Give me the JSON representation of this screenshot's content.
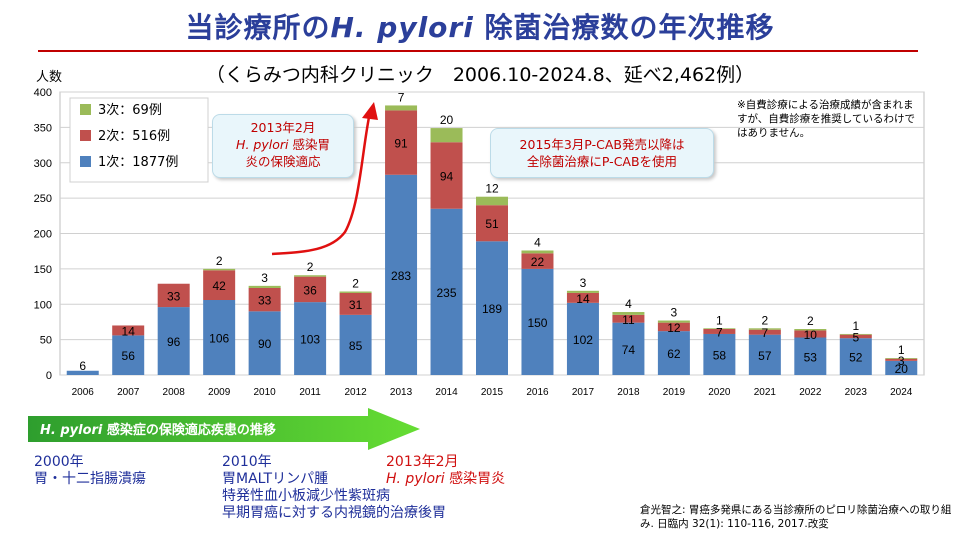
{
  "title_prefix": "当診療所の",
  "title_italic": "H. pylori",
  "title_suffix": " 除菌治療数の年次推移",
  "subtitle": "（くらみつ内科クリニック　2006.10-2024.8、延べ2,462例）",
  "ylabel": "人数",
  "callout1": {
    "line1": "2013年2月",
    "line2_italic": "H. pylori",
    "line2_rest": " 感染胃",
    "line3": "炎の保険適応"
  },
  "callout2": {
    "line1": "2015年3月P-CAB発売以降は",
    "line2": "全除菌治療にP-CABを使用"
  },
  "note": "※自費診療による治療成績が含まれますが、自費診療を推奨しているわけではありません。",
  "arrow_label_italic": "H. pylori",
  "arrow_label_rest": " 感染症の保険適応疾患の推移",
  "history": [
    {
      "year": "2000年",
      "lines": [
        "胃・十二指腸潰瘍"
      ]
    },
    {
      "year": "2010年",
      "lines": [
        "胃MALTリンパ腫",
        "特発性血小板減少性紫斑病",
        "早期胃癌に対する内視鏡的治療後胃"
      ]
    },
    {
      "year": "2013年2月",
      "italic": "H. pylori",
      "rest": " 感染胃炎"
    }
  ],
  "citation": "倉光智之: 胃癌多発県にある当診療所のピロリ除菌治療への取り組み. 日臨内 32(1): 110-116, 2017.改変",
  "colors": {
    "first": "#4f81bd",
    "second": "#c0504d",
    "third": "#9bbb59",
    "title": "#2b3f9a"
  },
  "chart_data": {
    "type": "bar",
    "stacked": true,
    "categories": [
      "2006",
      "2007",
      "2008",
      "2009",
      "2010",
      "2011",
      "2012",
      "2013",
      "2014",
      "2015",
      "2016",
      "2017",
      "2018",
      "2019",
      "2020",
      "2021",
      "2022",
      "2023",
      "2024"
    ],
    "series": [
      {
        "name": "1次：1877例",
        "values": [
          6,
          56,
          96,
          106,
          90,
          103,
          85,
          283,
          235,
          189,
          150,
          102,
          74,
          62,
          58,
          57,
          53,
          52,
          20
        ]
      },
      {
        "name": "2次：516例",
        "values": [
          0,
          14,
          33,
          42,
          33,
          36,
          31,
          91,
          94,
          51,
          22,
          14,
          11,
          12,
          7,
          7,
          10,
          5,
          3
        ]
      },
      {
        "name": "3次：69例",
        "values": [
          0,
          0,
          0,
          2,
          3,
          2,
          2,
          7,
          20,
          12,
          4,
          3,
          4,
          3,
          1,
          2,
          2,
          1,
          1
        ]
      }
    ],
    "labels": {
      "first": [
        "6",
        "56",
        "96",
        "106",
        "90",
        "103",
        "85",
        "283",
        "235",
        "189",
        "150",
        "102",
        "74",
        "62",
        "58",
        "57",
        "53",
        "52",
        "20"
      ],
      "second": [
        "",
        "14",
        "33",
        "42",
        "33",
        "36",
        "31",
        "91",
        "94",
        "51",
        "22",
        "14",
        "11",
        "12",
        "7",
        "7",
        "10",
        "5",
        "3"
      ],
      "third": [
        "",
        "",
        "",
        "2",
        "3",
        "2",
        "2",
        "7",
        "20",
        "12",
        "4",
        "3",
        "4",
        "3",
        "1",
        "2",
        "2",
        "1",
        "1"
      ]
    },
    "ylim": [
      0,
      400
    ],
    "yticks": [
      "0",
      "50",
      "100",
      "150",
      "200",
      "250",
      "300",
      "350",
      "400"
    ],
    "grid": true,
    "legend": "top-left"
  }
}
